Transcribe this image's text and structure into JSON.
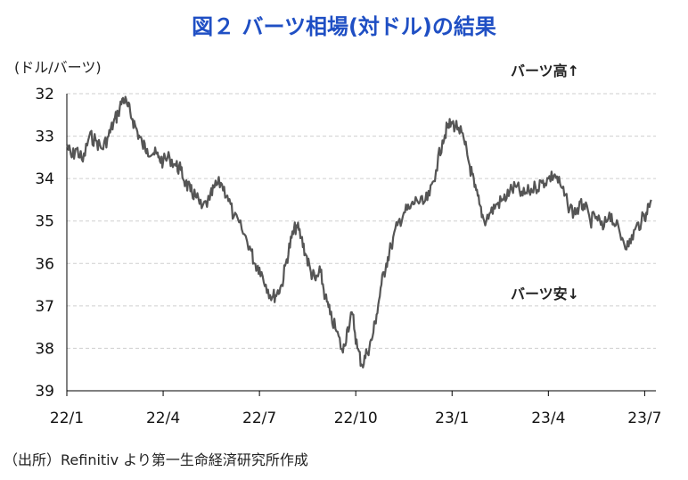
{
  "title": "図２ バーツ相場(対ドル)の結果",
  "unit_label": "(ドル/バーツ)",
  "annotations": {
    "up": "バーツ高↑",
    "down": "バーツ安↓"
  },
  "source": "（出所）Refinitiv より第一生命経済研究所作成",
  "colors": {
    "title": "#1f4fc4",
    "line": "#555555",
    "grid": "#cfcfcf"
  },
  "chart_data": {
    "type": "line",
    "title": "図２ バーツ相場(対ドル)の結果",
    "ylabel": "(ドル/バーツ)",
    "xlabel": "",
    "y_inverted": true,
    "ylim": [
      32,
      39
    ],
    "yticks": [
      "32",
      "33",
      "34",
      "35",
      "36",
      "37",
      "38",
      "39"
    ],
    "xticks": [
      "22/1",
      "22/4",
      "22/7",
      "22/10",
      "23/1",
      "23/4",
      "23/7"
    ],
    "grid": "horizontal dashed",
    "series": [
      {
        "x_months": [
          0.0,
          0.15,
          0.3,
          0.5,
          0.7,
          0.9,
          1.1,
          1.3,
          1.45,
          1.6,
          1.75,
          1.9,
          2.05,
          2.2,
          2.35,
          2.5,
          2.7,
          2.85,
          3.0,
          3.2,
          3.4,
          3.55,
          3.7,
          3.85,
          4.0,
          4.2,
          4.45,
          4.6,
          4.8,
          5.0,
          5.2,
          5.45,
          5.7,
          5.85,
          6.0,
          6.2,
          6.4,
          6.55,
          6.7,
          6.85,
          7.0,
          7.15,
          7.3,
          7.45,
          7.6,
          7.75,
          7.9,
          8.05,
          8.2,
          8.4,
          8.6,
          8.75,
          8.9,
          9.05,
          9.2,
          9.35,
          9.5,
          9.65,
          9.8,
          9.95,
          10.1,
          10.3,
          10.5,
          10.7,
          10.9,
          11.1,
          11.3,
          11.5,
          11.7,
          11.85,
          12.0,
          12.2,
          12.4,
          12.55,
          12.7,
          12.85,
          13.0,
          13.2,
          13.4,
          13.6,
          13.8,
          14.0,
          14.2,
          14.4,
          14.6,
          14.8,
          15.0,
          15.2,
          15.4,
          15.6,
          15.8,
          15.95,
          16.1,
          16.3,
          16.5,
          16.7,
          16.9,
          17.1,
          17.3,
          17.5,
          17.7,
          17.9,
          18.05,
          18.2
        ],
        "values": [
          33.2,
          33.5,
          33.3,
          33.6,
          33.0,
          33.1,
          33.3,
          33.0,
          32.7,
          32.45,
          32.1,
          32.3,
          32.6,
          32.9,
          33.2,
          33.3,
          33.4,
          33.5,
          33.6,
          33.5,
          33.7,
          33.8,
          34.1,
          34.3,
          34.4,
          34.7,
          34.5,
          34.2,
          34.1,
          34.4,
          34.9,
          35.2,
          35.6,
          36.0,
          36.1,
          36.5,
          36.8,
          36.7,
          36.5,
          35.9,
          35.4,
          35.1,
          35.4,
          35.8,
          36.2,
          36.4,
          36.2,
          36.8,
          37.2,
          37.6,
          38.1,
          37.5,
          37.2,
          38.0,
          38.4,
          38.1,
          37.8,
          37.2,
          36.5,
          36.0,
          35.6,
          35.1,
          34.8,
          34.7,
          34.5,
          34.6,
          34.4,
          33.8,
          33.1,
          32.8,
          32.7,
          32.8,
          33.2,
          33.7,
          34.2,
          34.6,
          35.0,
          34.8,
          34.6,
          34.5,
          34.3,
          34.2,
          34.4,
          34.3,
          34.2,
          34.1,
          34.0,
          33.9,
          34.2,
          34.6,
          34.8,
          34.7,
          34.6,
          35.0,
          34.9,
          35.2,
          34.8,
          35.1,
          35.4,
          35.6,
          35.2,
          35.0,
          34.8,
          34.5
        ]
      }
    ]
  }
}
